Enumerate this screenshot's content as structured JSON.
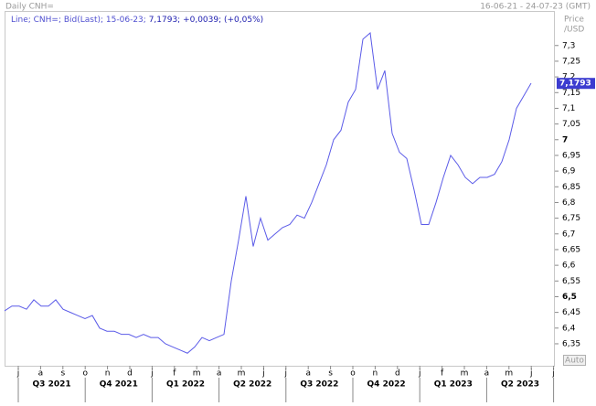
{
  "header": {
    "title": "Daily CNH=",
    "date_range": "16-06-21 - 24-07-23 (GMT)",
    "price_label": "Price",
    "unit_label": "/USD",
    "legend_label": "Line; CNH=; Bid(Last); 15-06-23;",
    "legend_values": "7,1793; +0,0039; (+0,05%)",
    "auto_button": "Auto"
  },
  "chart_data": {
    "type": "line",
    "series": [
      {
        "name": "CNH=",
        "color": "#5b5be8",
        "values": [
          6.455,
          6.47,
          6.47,
          6.46,
          6.49,
          6.47,
          6.47,
          6.49,
          6.46,
          6.45,
          6.44,
          6.43,
          6.44,
          6.4,
          6.39,
          6.39,
          6.38,
          6.38,
          6.37,
          6.38,
          6.37,
          6.37,
          6.35,
          6.34,
          6.33,
          6.32,
          6.34,
          6.37,
          6.36,
          6.37,
          6.38,
          6.55,
          6.68,
          6.82,
          6.66,
          6.75,
          6.68,
          6.7,
          6.72,
          6.73,
          6.76,
          6.75,
          6.8,
          6.86,
          6.92,
          7.0,
          7.03,
          7.12,
          7.16,
          7.32,
          7.34,
          7.16,
          7.22,
          7.02,
          6.96,
          6.94,
          6.84,
          6.73,
          6.73,
          6.8,
          6.88,
          6.95,
          6.92,
          6.88,
          6.86,
          6.88,
          6.88,
          6.89,
          6.93,
          7.0,
          7.1,
          7.14,
          7.18
        ]
      }
    ],
    "last_price": 7.1793,
    "last_price_label": "7,1793",
    "months": [
      "j",
      "a",
      "s",
      "o",
      "n",
      "d",
      "j",
      "f",
      "m",
      "a",
      "m",
      "j",
      "j",
      "a",
      "s",
      "o",
      "n",
      "d",
      "j",
      "f",
      "m",
      "a",
      "m",
      "j",
      "j"
    ],
    "quarters": [
      "Q3 2021",
      "Q4 2021",
      "Q1 2022",
      "Q2 2022",
      "Q3 2022",
      "Q4 2022",
      "Q1 2023",
      "Q2 2023"
    ],
    "ylim": [
      6.28,
      7.41
    ],
    "yticks": [
      {
        "value": 6.35,
        "label": "6,35"
      },
      {
        "value": 6.4,
        "label": "6,4"
      },
      {
        "value": 6.45,
        "label": "6,45"
      },
      {
        "value": 6.5,
        "label": "6,5"
      },
      {
        "value": 6.55,
        "label": "6,55"
      },
      {
        "value": 6.6,
        "label": "6,6"
      },
      {
        "value": 6.65,
        "label": "6,65"
      },
      {
        "value": 6.7,
        "label": "6,7"
      },
      {
        "value": 6.75,
        "label": "6,75"
      },
      {
        "value": 6.8,
        "label": "6,8"
      },
      {
        "value": 6.85,
        "label": "6,85"
      },
      {
        "value": 6.9,
        "label": "6,9"
      },
      {
        "value": 6.95,
        "label": "6,95"
      },
      7,
      {
        "value": 7.05,
        "label": "7,05"
      },
      {
        "value": 7.1,
        "label": "7,1"
      },
      {
        "value": 7.15,
        "label": "7,15"
      },
      {
        "value": 7.2,
        "label": "7,2"
      },
      {
        "value": 7.25,
        "label": "7,25"
      },
      {
        "value": 7.3,
        "label": "7,3"
      }
    ],
    "bold_ticks": [
      6.5,
      7
    ]
  }
}
